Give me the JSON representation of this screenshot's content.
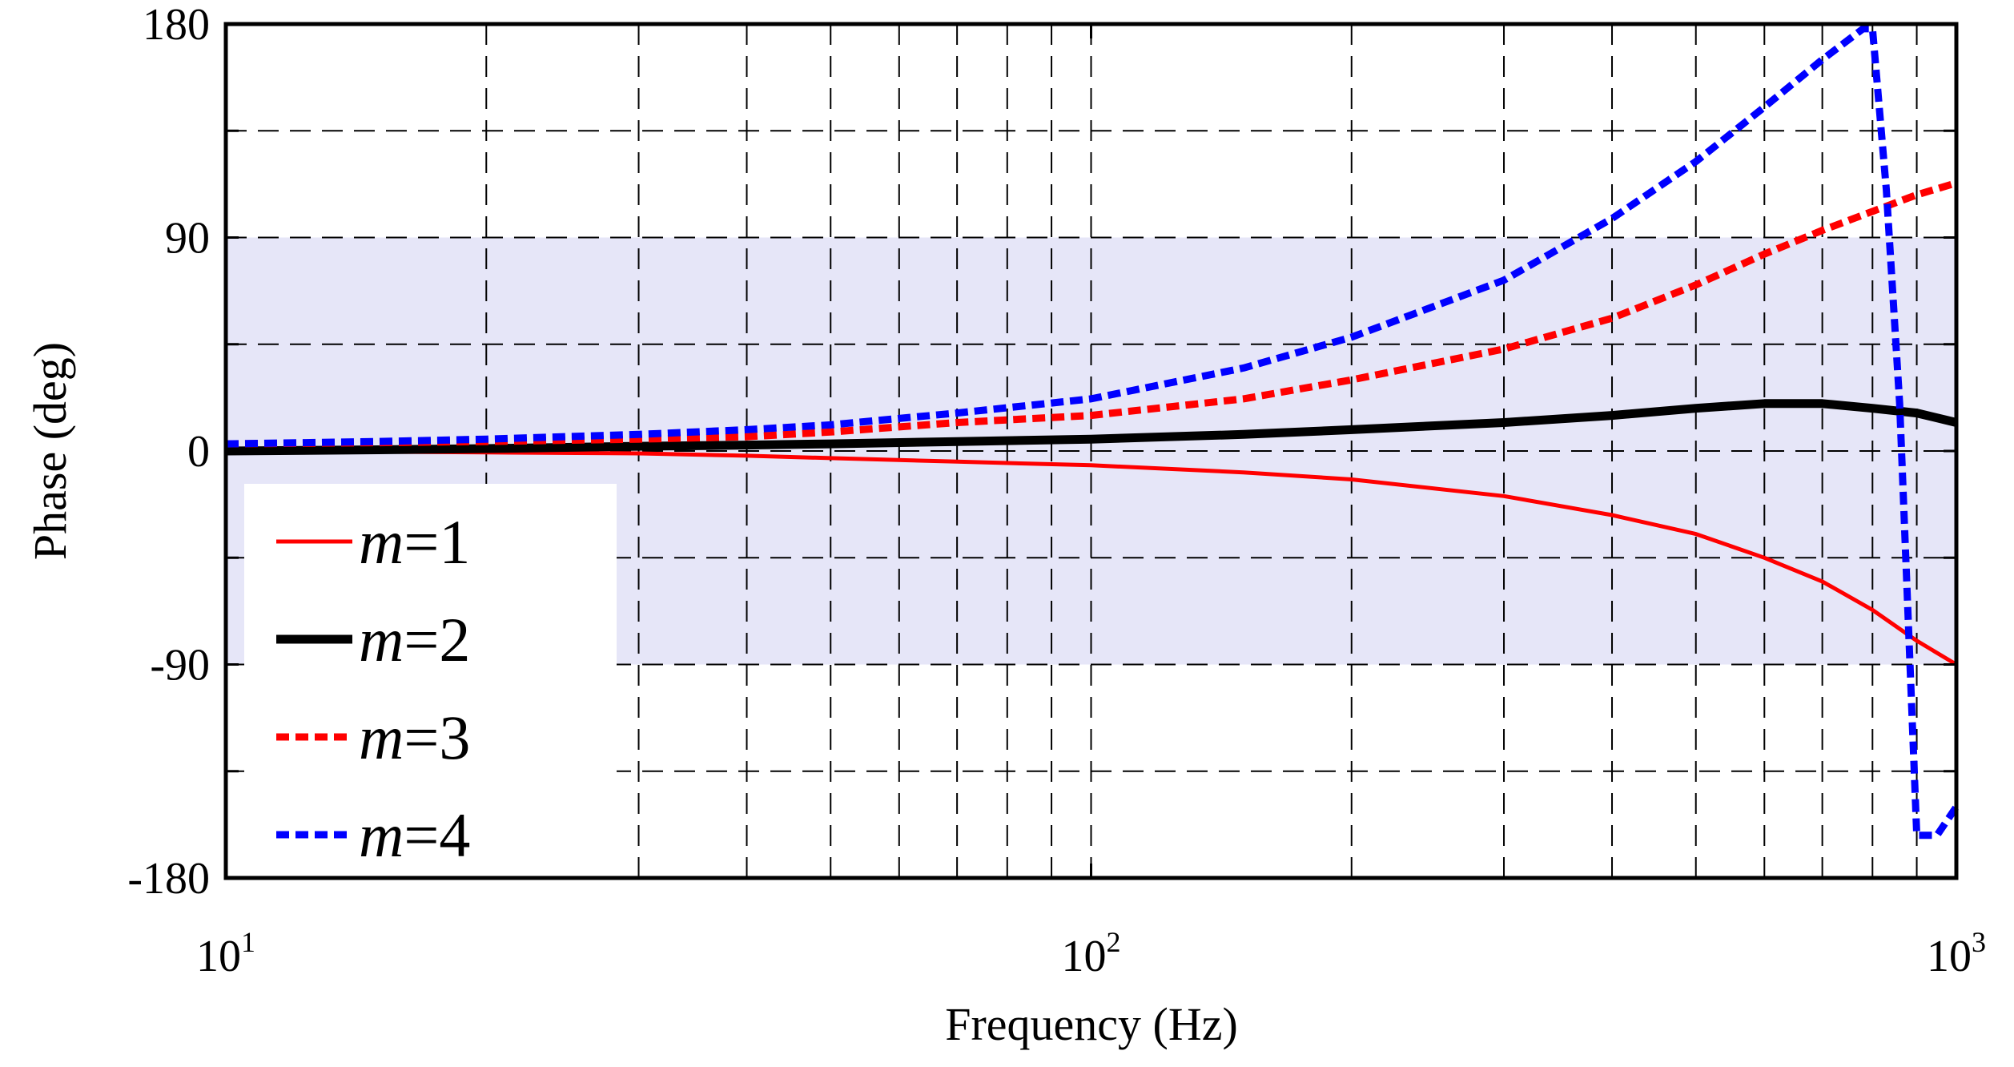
{
  "chart_data": {
    "type": "line",
    "title": "",
    "xlabel": "Frequency  (Hz)",
    "ylabel": "Phase (deg)",
    "xscale": "log",
    "xlim": [
      10,
      1000
    ],
    "ylim": [
      -180,
      180
    ],
    "grid": true,
    "x_minor_grid": true,
    "x_ticks": [
      {
        "base": "10",
        "exp": "1"
      },
      {
        "base": "10",
        "exp": "2"
      },
      {
        "base": "10",
        "exp": "3"
      }
    ],
    "y_ticks": [
      "180",
      "90",
      "0",
      "-90",
      "-180"
    ],
    "y_tick_values": [
      180,
      90,
      0,
      -90,
      -180
    ],
    "y_grid_values": [
      135,
      90,
      45,
      0,
      -45,
      -90,
      -135
    ],
    "shaded_band": {
      "y_range": [
        -90,
        90
      ],
      "x_range": [
        10,
        1000
      ],
      "color": "#e6e6f8"
    },
    "legend_position": "lower-left",
    "x": [
      10,
      15,
      20,
      30,
      40,
      50,
      70,
      100,
      150,
      200,
      300,
      400,
      500,
      600,
      700,
      800,
      900,
      1000
    ],
    "series": [
      {
        "name": "m=1",
        "var": "m",
        "suffix": "=1",
        "color": "#ff0000",
        "style": "solid",
        "width": 5,
        "values": [
          0,
          -0.3,
          -0.6,
          -1,
          -2,
          -3,
          -4.5,
          -6,
          -9,
          -12,
          -19,
          -27,
          -35,
          -45,
          -55,
          -67,
          -80,
          -90
        ]
      },
      {
        "name": "m=2",
        "var": "m",
        "suffix": "=2",
        "color": "#000000",
        "style": "solid",
        "width": 11,
        "values": [
          0,
          0.5,
          1,
          2,
          2.5,
          3,
          4,
          5,
          7,
          9,
          12,
          15,
          18,
          20,
          20,
          18,
          16,
          12
        ]
      },
      {
        "name": "m=3",
        "var": "m",
        "suffix": "=3",
        "color": "#ff0000",
        "style": "dashed",
        "width": 9,
        "values": [
          3,
          3.5,
          4,
          5,
          6,
          8,
          12,
          15,
          22,
          30,
          43,
          56,
          70,
          83,
          93,
          101,
          108,
          113
        ]
      },
      {
        "name": "m=4",
        "var": "m",
        "suffix": "=4",
        "color": "#0000ff",
        "style": "dashed",
        "width": 9,
        "x": [
          10,
          15,
          20,
          30,
          40,
          50,
          70,
          100,
          150,
          200,
          300,
          400,
          500,
          600,
          700,
          780,
          800,
          830,
          860,
          900,
          950,
          1000
        ],
        "values": [
          3,
          4,
          5,
          7,
          9,
          11,
          16,
          22,
          35,
          48,
          72,
          98,
          122,
          145,
          165,
          178,
          178,
          110,
          20,
          -162,
          -162,
          -150
        ]
      }
    ]
  }
}
